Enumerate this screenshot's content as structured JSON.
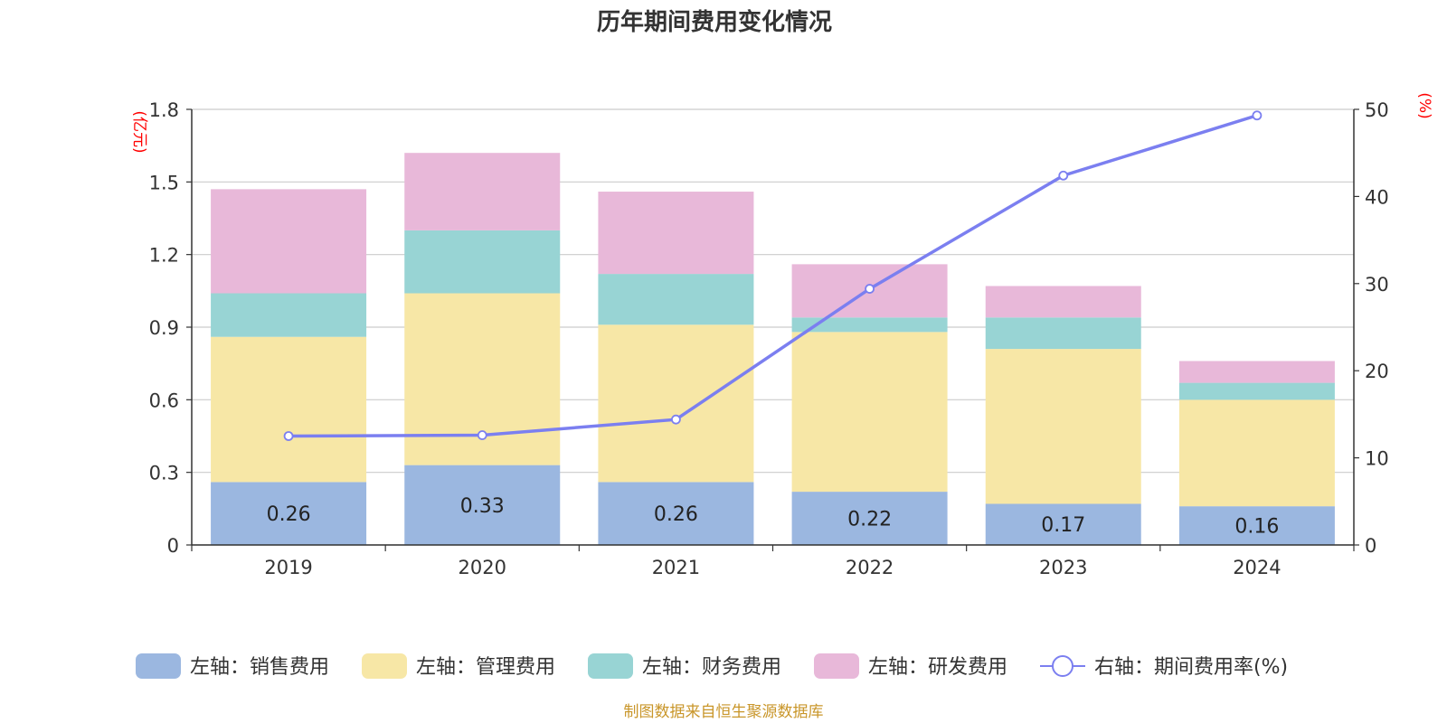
{
  "chart_data": {
    "type": "bar",
    "stacked": true,
    "title": "历年期间费用变化情况",
    "categories": [
      "2019",
      "2020",
      "2021",
      "2022",
      "2023",
      "2024"
    ],
    "series": [
      {
        "name": "左轴：销售费用",
        "axis": "left",
        "color": "#9bb7e0",
        "values": [
          0.26,
          0.33,
          0.26,
          0.22,
          0.17,
          0.16
        ],
        "show_labels": true
      },
      {
        "name": "左轴：管理费用",
        "axis": "left",
        "color": "#f7e7a6",
        "values": [
          0.6,
          0.71,
          0.65,
          0.66,
          0.64,
          0.44
        ]
      },
      {
        "name": "左轴：财务费用",
        "axis": "left",
        "color": "#98d4d4",
        "values": [
          0.18,
          0.26,
          0.21,
          0.06,
          0.13,
          0.07
        ]
      },
      {
        "name": "左轴：研发费用",
        "axis": "left",
        "color": "#e8b8d9",
        "values": [
          0.43,
          0.32,
          0.34,
          0.22,
          0.13,
          0.09
        ]
      },
      {
        "name": "右轴：期间费用率(%)",
        "type": "line",
        "axis": "right",
        "color": "#7b7ff0",
        "values": [
          12.5,
          12.6,
          14.4,
          29.4,
          42.4,
          49.3
        ]
      }
    ],
    "left_axis": {
      "unit": "(亿元)",
      "ylim": [
        0,
        1.8
      ],
      "ticks": [
        "0",
        "0.3",
        "0.6",
        "0.9",
        "1.2",
        "1.5",
        "1.8"
      ]
    },
    "right_axis": {
      "unit": "(%)",
      "ylim": [
        0,
        50
      ],
      "ticks": [
        "0",
        "10",
        "20",
        "30",
        "40",
        "50"
      ]
    },
    "grid": true,
    "legend_position": "bottom",
    "source": "制图数据来自恒生聚源数据库"
  }
}
